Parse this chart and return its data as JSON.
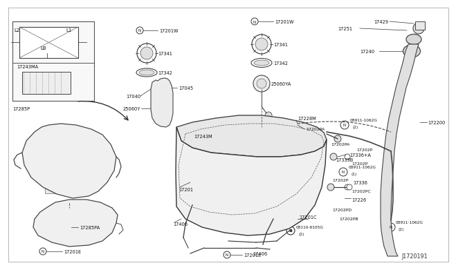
{
  "bg_color": "#ffffff",
  "fig_width": 6.4,
  "fig_height": 3.72,
  "diagram_id": "J1720191"
}
